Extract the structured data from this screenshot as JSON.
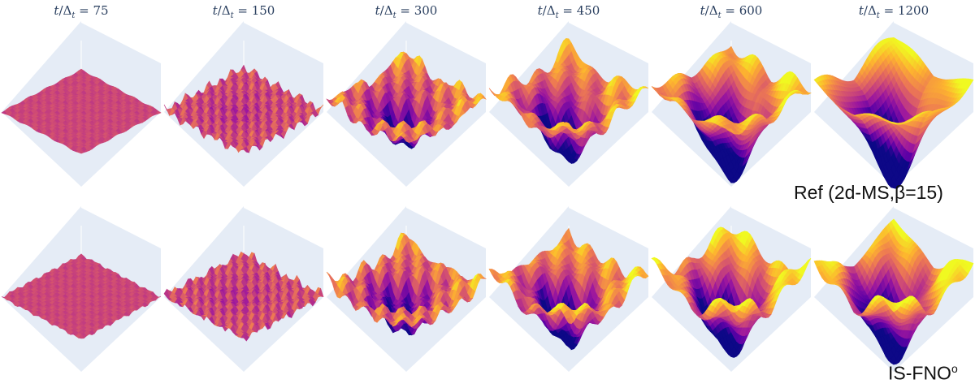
{
  "chart_data": {
    "type": "surface-grid",
    "column_titles": [
      {
        "var": "t",
        "sub": "t",
        "value": "75"
      },
      {
        "var": "t",
        "sub": "t",
        "value": "150"
      },
      {
        "var": "t",
        "sub": "t",
        "value": "300"
      },
      {
        "var": "t",
        "sub": "t",
        "value": "450"
      },
      {
        "var": "t",
        "sub": "t",
        "value": "600"
      },
      {
        "var": "t",
        "sub": "t",
        "value": "1200"
      }
    ],
    "rows": [
      {
        "label_main": "Ref (2d-MS,β=15)",
        "label_sup": ""
      },
      {
        "label_main": "IS-FNO",
        "label_sup": "o"
      }
    ],
    "colorscale": [
      "#0d0887",
      "#5c01a6",
      "#9c179e",
      "#cc4778",
      "#ed7953",
      "#fdb42f",
      "#f0f921"
    ],
    "scene_background": "#e5ecf6",
    "panels": [
      [
        {
          "relief": 0.1,
          "freq": 9.0,
          "bowl": 0.0
        },
        {
          "relief": 0.35,
          "freq": 7.0,
          "bowl": 0.15
        },
        {
          "relief": 0.75,
          "freq": 4.0,
          "bowl": 0.6
        },
        {
          "relief": 0.9,
          "freq": 3.0,
          "bowl": 0.8
        },
        {
          "relief": 1.0,
          "freq": 2.2,
          "bowl": 0.9
        },
        {
          "relief": 1.0,
          "freq": 1.5,
          "bowl": 1.0
        }
      ],
      [
        {
          "relief": 0.1,
          "freq": 9.0,
          "bowl": 0.0
        },
        {
          "relief": 0.35,
          "freq": 7.2,
          "bowl": 0.15
        },
        {
          "relief": 0.75,
          "freq": 4.2,
          "bowl": 0.6
        },
        {
          "relief": 0.9,
          "freq": 3.2,
          "bowl": 0.8
        },
        {
          "relief": 1.0,
          "freq": 2.5,
          "bowl": 0.9
        },
        {
          "relief": 1.0,
          "freq": 2.2,
          "bowl": 0.95
        }
      ]
    ]
  }
}
